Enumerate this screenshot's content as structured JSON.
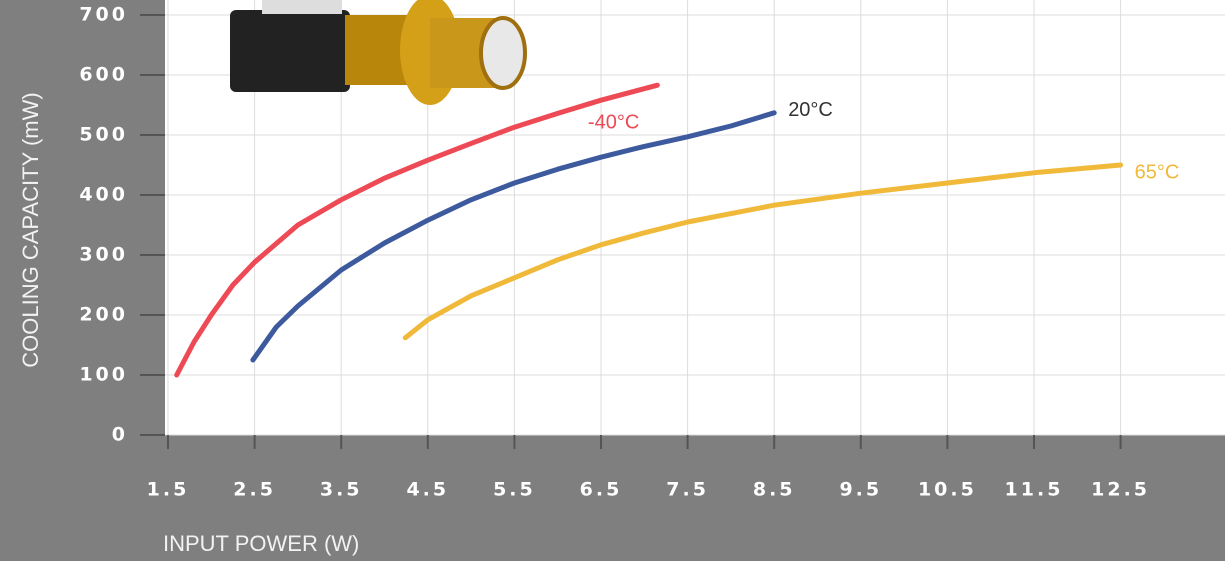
{
  "chart_data": {
    "type": "line",
    "x_label": "INPUT POWER (W)",
    "y_label": "COOLING CAPACITY (mW)",
    "xlim": [
      1.5,
      13.7
    ],
    "ylim": [
      0,
      725
    ],
    "xticks": [
      1.5,
      2.5,
      3.5,
      4.5,
      5.5,
      6.5,
      7.5,
      8.5,
      9.5,
      10.5,
      11.5,
      12.5
    ],
    "yticks": [
      0,
      100,
      200,
      300,
      400,
      500,
      600,
      700
    ],
    "grid": true,
    "series": [
      {
        "name": "-40°C",
        "color": "#ee4a55",
        "x": [
          1.6,
          1.8,
          2.0,
          2.25,
          2.5,
          3.0,
          3.5,
          4.0,
          4.5,
          5.0,
          5.5,
          6.0,
          6.5,
          7.15
        ],
        "values": [
          100,
          155,
          200,
          250,
          288,
          350,
          392,
          428,
          458,
          486,
          513,
          536,
          558,
          583
        ]
      },
      {
        "name": "20°C",
        "color": "#3d5a9e",
        "x": [
          2.48,
          2.75,
          3.0,
          3.5,
          4.0,
          4.5,
          5.0,
          5.5,
          6.0,
          6.5,
          7.0,
          7.5,
          8.0,
          8.5
        ],
        "values": [
          125,
          180,
          215,
          275,
          320,
          358,
          392,
          420,
          443,
          463,
          481,
          497,
          515,
          537
        ]
      },
      {
        "name": "65°C",
        "color": "#f0b93a",
        "x": [
          4.24,
          4.5,
          5.0,
          5.5,
          6.0,
          6.5,
          7.0,
          7.5,
          8.5,
          9.5,
          10.5,
          11.5,
          12.5
        ],
        "values": [
          162,
          192,
          232,
          262,
          292,
          317,
          337,
          355,
          383,
          403,
          420,
          437,
          450
        ]
      }
    ]
  }
}
